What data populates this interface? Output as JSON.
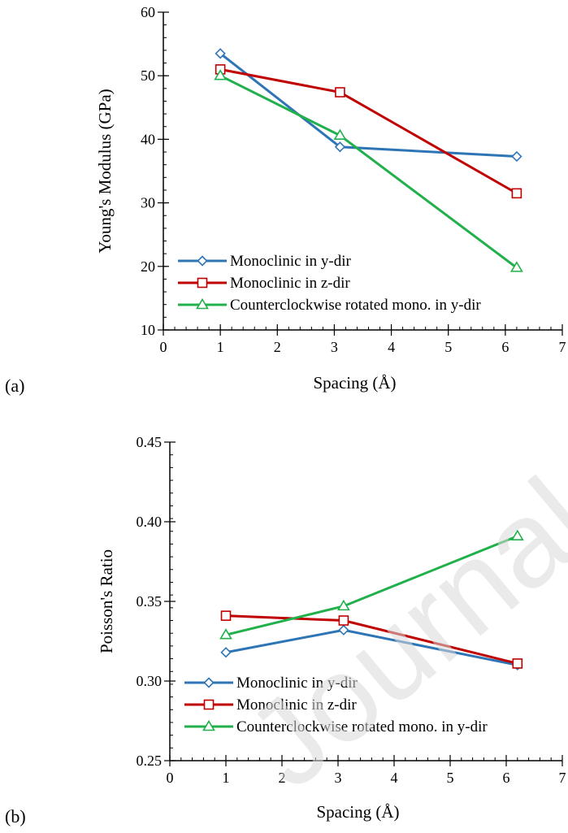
{
  "watermark": "Journal Pre-",
  "colors": {
    "series": [
      "#2E75B6",
      "#C00000",
      "#21B04B"
    ],
    "axis": "#000000"
  },
  "chart_data": [
    {
      "type": "line",
      "panel_label": "(a)",
      "xlabel": "Spacing (Å)",
      "ylabel": "Young's Modulus (GPa)",
      "xlim": [
        0,
        7
      ],
      "ylim": [
        10,
        60
      ],
      "xticks": [
        0,
        1,
        2,
        3,
        4,
        5,
        6,
        7
      ],
      "yticks": [
        10,
        20,
        30,
        40,
        50,
        60
      ],
      "ytick_labels": [
        "10",
        "20",
        "30",
        "40",
        "50",
        "60"
      ],
      "legend_position": "bottom-left",
      "grid": false,
      "series": [
        {
          "name": "Monoclinic in y-dir",
          "marker": "diamond",
          "x": [
            1,
            3.1,
            6.2
          ],
          "y": [
            53.5,
            38.8,
            37.3
          ]
        },
        {
          "name": "Monoclinic in z-dir",
          "marker": "square",
          "x": [
            1,
            3.1,
            6.2
          ],
          "y": [
            51.0,
            47.4,
            31.5
          ]
        },
        {
          "name": "Counterclockwise rotated mono. in y-dir",
          "marker": "triangle",
          "x": [
            1,
            3.1,
            6.2
          ],
          "y": [
            50.0,
            40.6,
            19.8
          ]
        }
      ]
    },
    {
      "type": "line",
      "panel_label": "(b)",
      "xlabel": "Spacing (Å)",
      "ylabel": "Poisson's Ratio",
      "xlim": [
        0,
        7
      ],
      "ylim": [
        0.25,
        0.45
      ],
      "xticks": [
        0,
        1,
        2,
        3,
        4,
        5,
        6,
        7
      ],
      "yticks": [
        0.25,
        0.3,
        0.35,
        0.4,
        0.45
      ],
      "ytick_labels": [
        "0.25",
        "0.30",
        "0.35",
        "0.40",
        "0.45"
      ],
      "legend_position": "bottom-left",
      "grid": false,
      "series": [
        {
          "name": "Monoclinic in y-dir",
          "marker": "diamond",
          "x": [
            1,
            3.1,
            6.2
          ],
          "y": [
            0.318,
            0.332,
            0.31
          ]
        },
        {
          "name": "Monoclinic in z-dir",
          "marker": "square",
          "x": [
            1,
            3.1,
            6.2
          ],
          "y": [
            0.341,
            0.338,
            0.311
          ]
        },
        {
          "name": "Counterclockwise rotated mono. in y-dir",
          "marker": "triangle",
          "x": [
            1,
            3.1,
            6.2
          ],
          "y": [
            0.329,
            0.347,
            0.391
          ]
        }
      ]
    }
  ]
}
